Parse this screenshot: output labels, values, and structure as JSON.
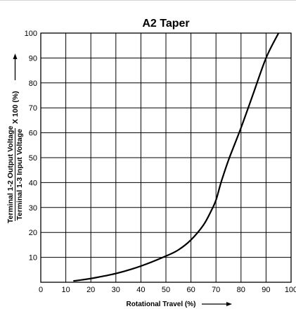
{
  "chart_data": {
    "type": "line",
    "title": "A2 Taper",
    "xlabel": "Rotational Travel (%)",
    "ylabel": {
      "numerator": "Terminal 1-2 Output Voltage",
      "denominator": "Terminal 1-3 Input Voltage",
      "multiplier": "X 100 (%)"
    },
    "xlim": [
      0,
      100
    ],
    "ylim": [
      0,
      100
    ],
    "x_ticks": [
      "0",
      "10",
      "20",
      "30",
      "40",
      "50",
      "60",
      "70",
      "80",
      "90",
      "100"
    ],
    "y_ticks": [
      "10",
      "20",
      "30",
      "40",
      "50",
      "60",
      "70",
      "80",
      "90",
      "100"
    ],
    "grid": true,
    "series": [
      {
        "color": "#000000",
        "x": [
          13,
          20,
          30,
          40,
          50,
          55,
          60,
          65,
          68,
          70,
          72,
          75,
          80,
          85,
          90,
          95
        ],
        "y": [
          0.5,
          1.5,
          3.5,
          6.5,
          10.5,
          13,
          17,
          23,
          28.5,
          33,
          40,
          49,
          62,
          76,
          90,
          100
        ]
      }
    ]
  },
  "colors": {
    "grid": "#000000",
    "curve": "#000000",
    "background": "#ffffff"
  },
  "icons": {
    "x_arrow": "arrow-right-icon",
    "y_arrow": "arrow-up-icon"
  }
}
